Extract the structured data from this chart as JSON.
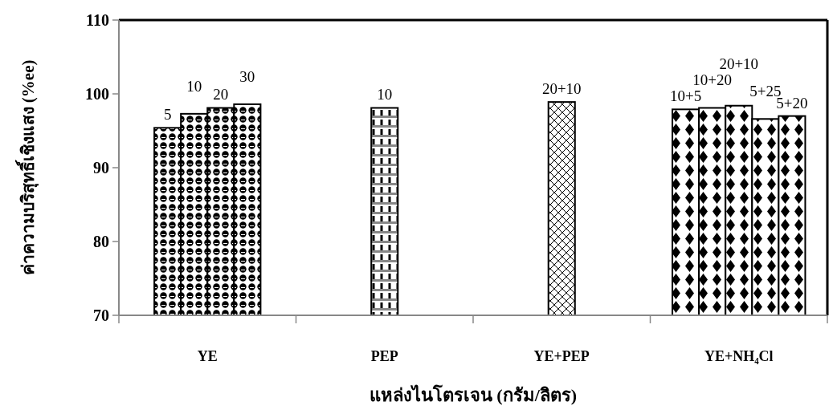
{
  "chart_data": {
    "type": "bar",
    "xlabel": "แหล่งไนโตรเจน (กรัม/ลิตร)",
    "ylabel": "ค่าความบริสุทธิ์เชิงแสง (%ee)",
    "categories": [
      "YE",
      "PEP",
      "YE+PEP",
      "YE+NH₄Cl"
    ],
    "series": [
      {
        "color": "#000000",
        "values": [
          95.4,
          98.1,
          98.9,
          97.9
        ]
      },
      {
        "color": "#000000",
        "values": [
          97.3,
          null,
          null,
          98.1
        ]
      },
      {
        "color": "#000000",
        "values": [
          98.1,
          null,
          null,
          98.4
        ]
      },
      {
        "color": "#000000",
        "values": [
          98.6,
          null,
          null,
          96.6
        ]
      },
      {
        "color": "#000000",
        "values": [
          null,
          null,
          null,
          97.0
        ]
      }
    ],
    "annotations": [
      "5",
      "10",
      "20",
      "30",
      "10",
      "20+10",
      "10+5",
      "10+20",
      "20+10",
      "5+25",
      "5+20"
    ],
    "ylim": [
      70,
      110
    ],
    "yticks": [
      70,
      80,
      90,
      100,
      110
    ],
    "grid": false
  }
}
